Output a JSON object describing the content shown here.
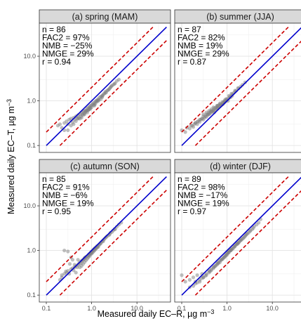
{
  "chart_data": {
    "type": "scatter",
    "scale": "log10",
    "xlabel": "Measured daily EC–R, µg m",
    "xlabel_sup": "−3",
    "ylabel": "Measured daily EC–T, µg m",
    "ylabel_sup": "−3",
    "xlim": [
      0.07,
      55
    ],
    "ylim": [
      0.07,
      55
    ],
    "x_ticks": [
      0.1,
      1.0,
      10.0
    ],
    "x_tick_labels": [
      "0.1",
      "1.0",
      "10.0"
    ],
    "y_ticks": [
      0.1,
      1.0,
      10.0
    ],
    "y_tick_labels": [
      "0.1",
      "1.0",
      "10.0"
    ],
    "grid": true,
    "reference_lines": {
      "one_to_one": {
        "color": "#0000cc",
        "style": "solid"
      },
      "factor_of_two": {
        "color": "#cc0000",
        "style": "dashed"
      }
    },
    "point_color": "#808080",
    "panels": [
      {
        "title": "(a) spring (MAM)",
        "stats": [
          "n = 86",
          "FAC2 = 97%",
          "NMB = −25%",
          "NMGE = 29%",
          "r = 0.94"
        ],
        "x": [
          0.18,
          0.2,
          0.22,
          0.25,
          0.28,
          0.3,
          0.32,
          0.35,
          0.38,
          0.4,
          0.42,
          0.45,
          0.48,
          0.5,
          0.52,
          0.55,
          0.58,
          0.6,
          0.62,
          0.65,
          0.68,
          0.7,
          0.72,
          0.75,
          0.78,
          0.8,
          0.82,
          0.85,
          0.88,
          0.9,
          0.92,
          0.95,
          1.0,
          1.05,
          1.1,
          1.15,
          1.2,
          1.25,
          1.3,
          1.35,
          1.4,
          1.5,
          1.6,
          1.7,
          1.8,
          1.9,
          2.0,
          2.2,
          2.4,
          2.6,
          2.8,
          3.0,
          3.3,
          3.6,
          4.0,
          0.3,
          0.45,
          0.6,
          0.75,
          0.9,
          1.1,
          1.3,
          1.6,
          2.0,
          2.5,
          0.55,
          0.7,
          0.85,
          1.0,
          1.2,
          1.45,
          1.75,
          2.1,
          2.7,
          3.2,
          0.65,
          0.8,
          0.95,
          1.15,
          1.4,
          1.7,
          2.3,
          0.5,
          0.4,
          0.35,
          0.25
        ],
        "y": [
          0.28,
          0.3,
          0.25,
          0.32,
          0.35,
          0.3,
          0.38,
          0.4,
          0.33,
          0.42,
          0.38,
          0.45,
          0.4,
          0.48,
          0.42,
          0.5,
          0.45,
          0.55,
          0.5,
          0.58,
          0.52,
          0.6,
          0.55,
          0.62,
          0.6,
          0.68,
          0.62,
          0.7,
          0.65,
          0.75,
          0.7,
          0.78,
          0.8,
          0.85,
          0.9,
          0.85,
          0.95,
          1.0,
          0.95,
          1.05,
          1.1,
          1.2,
          1.25,
          1.3,
          1.4,
          1.45,
          1.5,
          1.7,
          1.8,
          2.0,
          2.2,
          2.3,
          2.5,
          2.8,
          3.0,
          0.22,
          0.35,
          0.42,
          0.58,
          0.65,
          0.8,
          1.0,
          1.1,
          1.6,
          1.9,
          0.4,
          0.5,
          0.62,
          0.72,
          0.85,
          1.05,
          1.3,
          1.55,
          2.1,
          2.4,
          0.48,
          0.55,
          0.68,
          0.78,
          1.0,
          1.2,
          1.75,
          0.4,
          0.3,
          0.28,
          0.22
        ]
      },
      {
        "title": "(b) summer (JJA)",
        "stats": [
          "n = 87",
          "FAC2 = 82%",
          "NMB = 19%",
          "NMGE = 29%",
          "r = 0.87"
        ],
        "x": [
          0.1,
          0.12,
          0.13,
          0.15,
          0.16,
          0.18,
          0.19,
          0.2,
          0.22,
          0.23,
          0.25,
          0.26,
          0.28,
          0.3,
          0.32,
          0.33,
          0.35,
          0.37,
          0.4,
          0.42,
          0.45,
          0.48,
          0.5,
          0.52,
          0.55,
          0.58,
          0.6,
          0.63,
          0.66,
          0.7,
          0.74,
          0.78,
          0.82,
          0.86,
          0.9,
          0.95,
          1.0,
          1.05,
          1.1,
          1.2,
          1.3,
          1.4,
          1.5,
          1.6,
          1.8,
          2.0,
          2.2,
          2.5,
          0.2,
          0.25,
          0.3,
          0.35,
          0.4,
          0.45,
          0.5,
          0.55,
          0.6,
          0.65,
          0.7,
          0.8,
          0.9,
          1.0,
          1.15,
          1.3,
          1.5,
          1.75,
          0.3,
          0.35,
          0.4,
          0.45,
          0.5,
          0.6,
          0.7,
          0.8,
          0.9,
          1.1,
          1.25,
          0.17,
          0.22,
          0.28,
          0.38,
          0.44,
          0.52,
          0.62,
          0.72,
          0.85,
          0.95
        ],
        "y": [
          0.22,
          0.2,
          0.25,
          0.24,
          0.28,
          0.26,
          0.3,
          0.32,
          0.3,
          0.35,
          0.34,
          0.38,
          0.4,
          0.38,
          0.42,
          0.45,
          0.44,
          0.48,
          0.5,
          0.52,
          0.55,
          0.58,
          0.6,
          0.55,
          0.62,
          0.65,
          0.7,
          0.68,
          0.72,
          0.75,
          0.8,
          0.82,
          0.85,
          0.9,
          0.95,
          1.0,
          1.05,
          1.0,
          1.15,
          1.2,
          1.3,
          1.5,
          1.6,
          1.7,
          1.9,
          2.1,
          2.3,
          2.6,
          0.32,
          0.38,
          0.45,
          0.5,
          0.55,
          0.6,
          0.62,
          0.7,
          0.75,
          0.8,
          0.85,
          0.9,
          1.0,
          1.1,
          1.25,
          1.4,
          1.7,
          1.95,
          0.5,
          0.55,
          0.6,
          0.65,
          0.72,
          0.78,
          0.88,
          0.95,
          1.05,
          1.3,
          1.45,
          0.28,
          0.34,
          0.4,
          0.5,
          0.58,
          0.68,
          0.78,
          0.82,
          0.95,
          1.1
        ]
      },
      {
        "title": "(c) autumn (SON)",
        "stats": [
          "n = 85",
          "FAC2 = 91%",
          "NMB = −6%",
          "NMGE = 19%",
          "r = 0.95"
        ],
        "x": [
          0.2,
          0.22,
          0.25,
          0.28,
          0.3,
          0.32,
          0.35,
          0.38,
          0.4,
          0.42,
          0.45,
          0.48,
          0.5,
          0.52,
          0.55,
          0.58,
          0.6,
          0.62,
          0.65,
          0.68,
          0.7,
          0.72,
          0.75,
          0.8,
          0.85,
          0.9,
          0.95,
          1.0,
          1.05,
          1.1,
          1.15,
          1.2,
          1.3,
          1.4,
          1.5,
          1.6,
          1.7,
          1.8,
          2.0,
          2.2,
          2.4,
          2.6,
          2.8,
          3.0,
          3.3,
          3.6,
          4.0,
          4.5,
          0.25,
          0.3,
          0.35,
          0.6,
          0.7,
          0.8,
          0.9,
          1.0,
          1.1,
          1.25,
          1.4,
          1.6,
          1.8,
          2.1,
          2.5,
          3.2,
          0.45,
          0.55,
          0.65,
          0.75,
          0.85,
          0.95,
          1.05,
          1.2,
          1.35,
          1.5,
          1.9,
          0.22,
          0.27,
          0.33,
          0.38,
          0.5,
          0.42,
          1.15,
          0.88,
          0.98,
          1.3
        ],
        "y": [
          0.22,
          0.25,
          0.3,
          0.32,
          0.35,
          0.3,
          0.38,
          0.4,
          0.36,
          0.42,
          0.45,
          0.42,
          0.48,
          0.5,
          0.55,
          0.52,
          0.58,
          0.6,
          0.62,
          0.65,
          0.68,
          0.7,
          0.72,
          0.75,
          0.8,
          0.85,
          0.9,
          0.95,
          1.0,
          1.05,
          1.1,
          1.15,
          1.25,
          1.3,
          1.4,
          1.5,
          1.6,
          1.7,
          1.9,
          2.1,
          2.2,
          2.5,
          2.6,
          2.8,
          3.0,
          3.4,
          3.8,
          4.2,
          1.0,
          0.95,
          0.7,
          0.45,
          0.55,
          0.65,
          0.75,
          0.85,
          0.95,
          1.1,
          1.2,
          1.45,
          1.6,
          2.0,
          2.3,
          3.0,
          0.32,
          0.42,
          0.5,
          0.6,
          0.7,
          0.82,
          0.9,
          1.05,
          1.2,
          1.35,
          1.8,
          0.28,
          0.34,
          0.5,
          0.62,
          0.62,
          0.48,
          1.0,
          0.78,
          0.88,
          1.15
        ]
      },
      {
        "title": "(d) winter (DJF)",
        "stats": [
          "n = 89",
          "FAC2 = 98%",
          "NMB = −17%",
          "NMGE = 19%",
          "r = 0.97"
        ],
        "x": [
          0.1,
          0.12,
          0.15,
          0.18,
          0.2,
          0.22,
          0.25,
          0.28,
          0.3,
          0.35,
          0.4,
          0.45,
          0.5,
          0.55,
          0.6,
          0.65,
          0.7,
          0.75,
          0.8,
          0.85,
          0.9,
          0.95,
          1.0,
          1.05,
          1.1,
          1.15,
          1.2,
          1.25,
          1.3,
          1.4,
          1.5,
          1.6,
          1.7,
          1.8,
          1.9,
          2.0,
          2.2,
          2.4,
          2.6,
          2.8,
          3.0,
          3.3,
          3.6,
          4.0,
          4.5,
          5.0,
          5.5,
          0.2,
          0.3,
          0.4,
          0.5,
          0.6,
          0.7,
          0.8,
          0.9,
          1.0,
          1.1,
          1.2,
          1.35,
          1.5,
          1.65,
          1.8,
          2.0,
          2.3,
          2.7,
          3.2,
          3.8,
          0.25,
          0.35,
          0.45,
          0.55,
          0.65,
          0.75,
          0.85,
          0.95,
          1.05,
          1.25,
          1.45,
          1.7,
          2.1,
          2.5,
          0.15,
          0.18,
          0.22,
          0.28,
          0.33,
          0.42,
          0.52,
          0.62
        ],
        "y": [
          0.28,
          0.2,
          0.22,
          0.25,
          0.2,
          0.28,
          0.22,
          0.3,
          0.25,
          0.3,
          0.35,
          0.38,
          0.42,
          0.45,
          0.5,
          0.55,
          0.6,
          0.62,
          0.65,
          0.7,
          0.75,
          0.8,
          0.85,
          0.9,
          0.95,
          1.0,
          1.0,
          1.05,
          1.1,
          1.2,
          1.3,
          1.35,
          1.45,
          1.5,
          1.6,
          1.7,
          1.85,
          2.0,
          2.2,
          2.4,
          2.5,
          2.8,
          3.0,
          3.5,
          3.8,
          4.2,
          5.0,
          0.18,
          0.25,
          0.32,
          0.4,
          0.48,
          0.55,
          0.65,
          0.72,
          0.8,
          0.9,
          1.0,
          1.1,
          1.25,
          1.4,
          1.5,
          1.7,
          1.9,
          2.3,
          2.7,
          3.2,
          0.2,
          0.28,
          0.36,
          0.45,
          0.52,
          0.62,
          0.7,
          0.78,
          0.88,
          1.05,
          1.2,
          1.4,
          1.75,
          2.1,
          0.15,
          0.16,
          0.19,
          0.24,
          0.27,
          0.34,
          0.43,
          0.52
        ]
      }
    ]
  }
}
